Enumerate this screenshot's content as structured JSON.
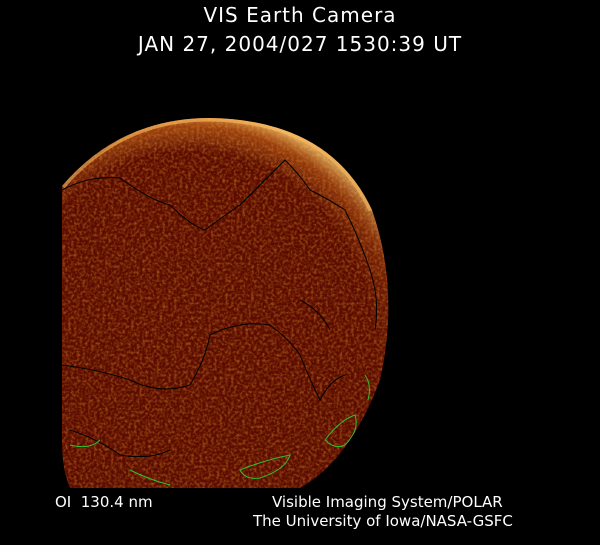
{
  "header": {
    "title": "VIS Earth Camera",
    "timestamp": "JAN 27, 2004/027 1530:39 UT"
  },
  "footer": {
    "band": "OI  130.4 nm",
    "instrument": "Visible Imaging System/POLAR",
    "institution": "The University of Iowa/NASA-GSFC"
  },
  "colors": {
    "background": "#000000",
    "disk": "#5a0c00",
    "aurora": "#ffb040",
    "coastline": "#000000",
    "night_coastline": "#2fbf2f"
  }
}
